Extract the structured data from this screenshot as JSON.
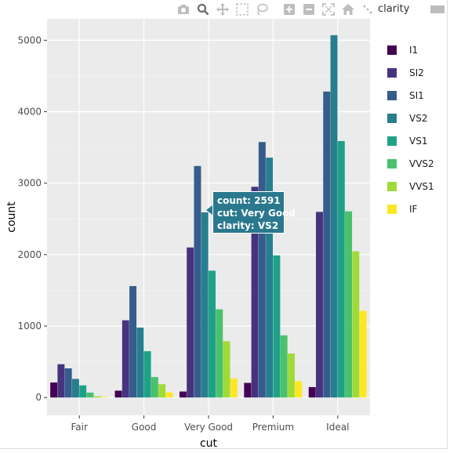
{
  "modebar": {
    "icons": [
      "camera-icon",
      "zoom-icon",
      "pan-icon",
      "box-select-icon",
      "lasso-icon",
      "zoom-in-icon",
      "zoom-out-icon",
      "autoscale-icon",
      "reset-axes-icon",
      "spike-lines-icon",
      "compare-hover-icon",
      "plotly-logo-icon"
    ]
  },
  "chart_data": {
    "type": "bar",
    "xlabel": "cut",
    "ylabel": "count",
    "categories": [
      "Fair",
      "Good",
      "Very Good",
      "Premium",
      "Ideal"
    ],
    "ylim": [
      -250,
      5300
    ],
    "yticks": [
      0,
      1000,
      2000,
      3000,
      4000,
      5000
    ],
    "ytick_labels": [
      "0",
      "1000",
      "2000",
      "3000",
      "4000",
      "5000"
    ],
    "grid": true,
    "legend_title": "clarity",
    "legend_position": "right",
    "series": [
      {
        "name": "I1",
        "color": "#440154",
        "values": [
          210,
          96,
          84,
          205,
          146
        ]
      },
      {
        "name": "SI2",
        "color": "#46337e",
        "values": [
          466,
          1081,
          2100,
          2949,
          2598
        ]
      },
      {
        "name": "SI1",
        "color": "#365c8d",
        "values": [
          408,
          1560,
          3240,
          3575,
          4282
        ]
      },
      {
        "name": "VS2",
        "color": "#277f8e",
        "values": [
          261,
          978,
          2591,
          3357,
          5071
        ]
      },
      {
        "name": "VS1",
        "color": "#1fa187",
        "values": [
          170,
          648,
          1775,
          1989,
          3589
        ]
      },
      {
        "name": "VVS2",
        "color": "#4ac16d",
        "values": [
          69,
          286,
          1235,
          870,
          2606
        ]
      },
      {
        "name": "VVS1",
        "color": "#a0da39",
        "values": [
          17,
          186,
          789,
          616,
          2047
        ]
      },
      {
        "name": "IF",
        "color": "#fde725",
        "values": [
          9,
          71,
          268,
          230,
          1212
        ]
      }
    ]
  },
  "tooltip": {
    "line1": "count: 2591",
    "line2": "cut: Very Good",
    "line3": "clarity: VS2"
  }
}
